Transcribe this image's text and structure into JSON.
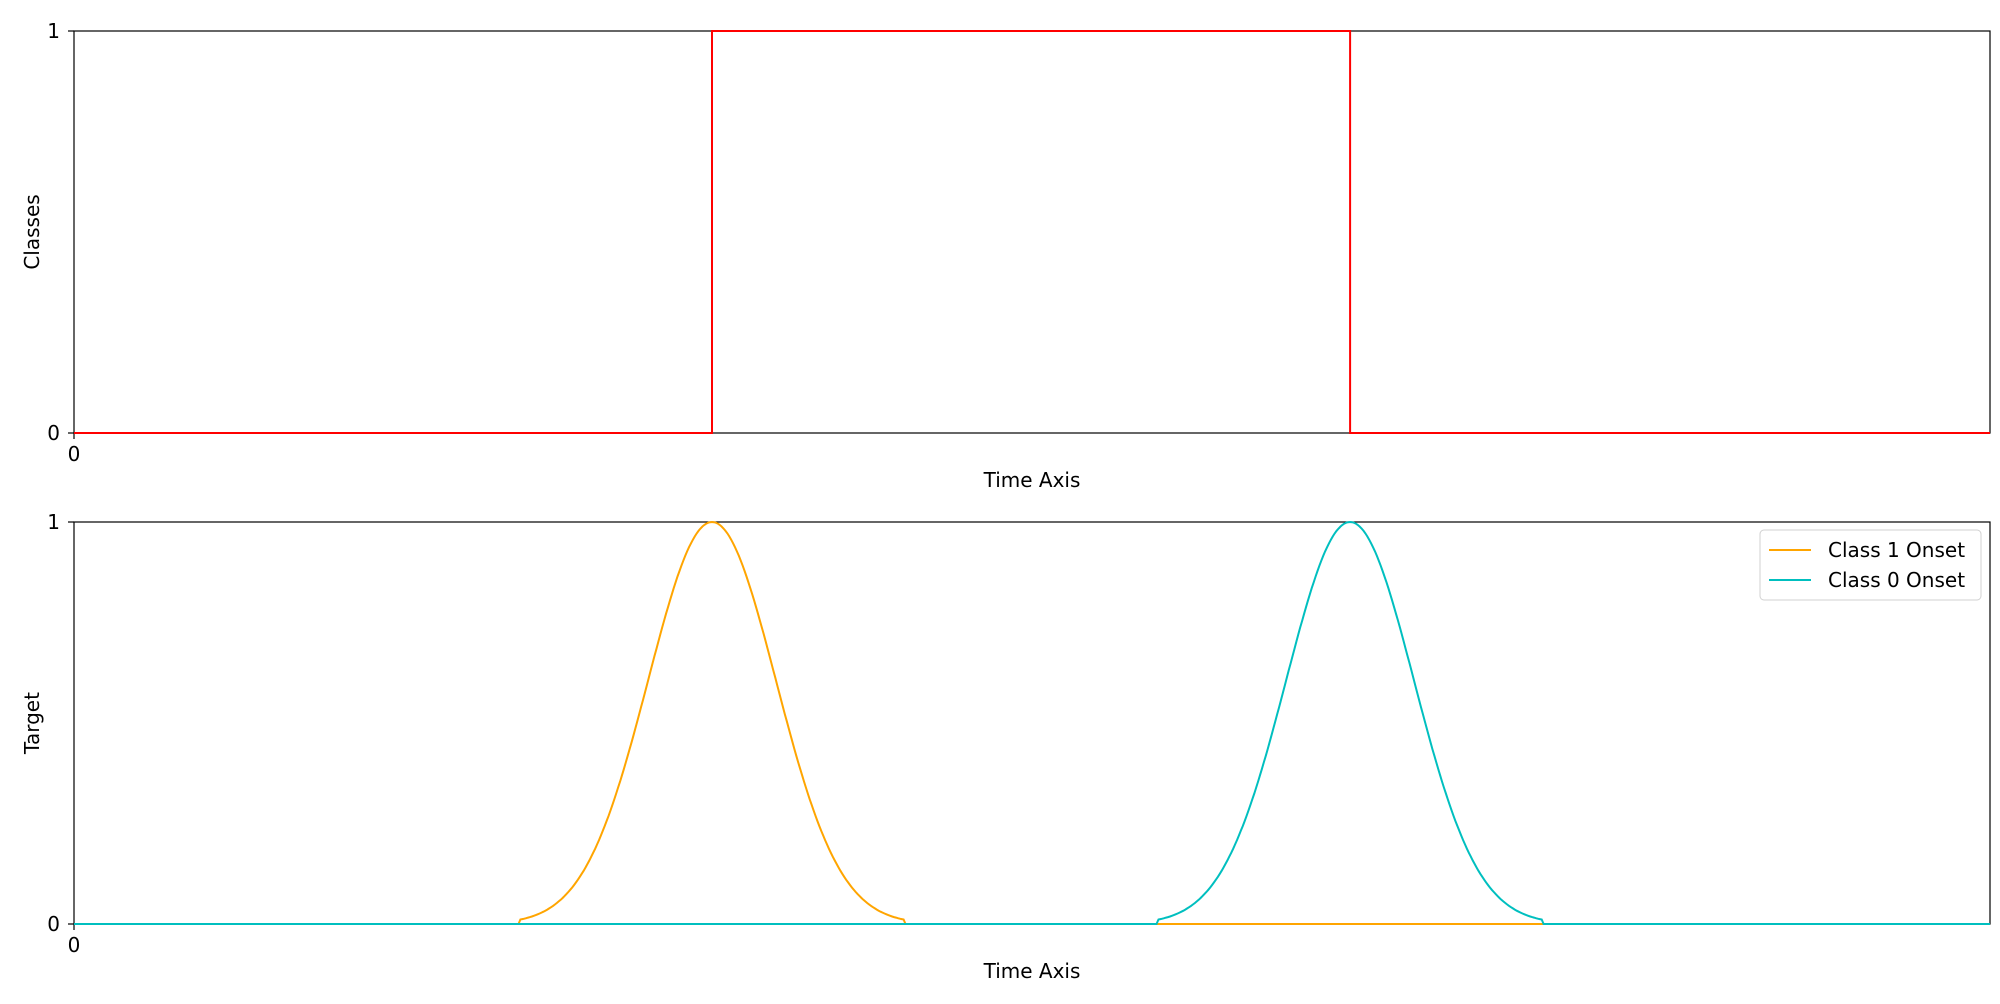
{
  "chart_data": [
    {
      "type": "line",
      "title": "",
      "xlabel": "Time Axis",
      "ylabel": "Classes",
      "xlim": [
        0,
        1000
      ],
      "ylim": [
        0,
        1
      ],
      "xticks": [
        "0"
      ],
      "yticks": [
        "0",
        "1"
      ],
      "grid": false,
      "series": [
        {
          "color": "#ff0000",
          "x": [
            0,
            333,
            333,
            666,
            666,
            1000
          ],
          "values": [
            0,
            0,
            1,
            1,
            0,
            0
          ]
        }
      ]
    },
    {
      "type": "line",
      "title": "",
      "xlabel": "Time Axis",
      "ylabel": "Target",
      "xlim": [
        0,
        1000
      ],
      "ylim": [
        0,
        1
      ],
      "xticks": [
        "0"
      ],
      "yticks": [
        "0",
        "1"
      ],
      "grid": false,
      "legend_position": "top-right",
      "series": [
        {
          "name": "Class 1 Onset",
          "color": "#ffa500",
          "shape": "gaussian",
          "peak_x": 333,
          "peak_value": 1,
          "support": [
            233,
            433
          ],
          "baseline": 0
        },
        {
          "name": "Class 0 Onset",
          "color": "#00bfbf",
          "shape": "gaussian",
          "peak_x": 666,
          "peak_value": 1,
          "support": [
            566,
            766
          ],
          "baseline": 0
        }
      ]
    }
  ]
}
